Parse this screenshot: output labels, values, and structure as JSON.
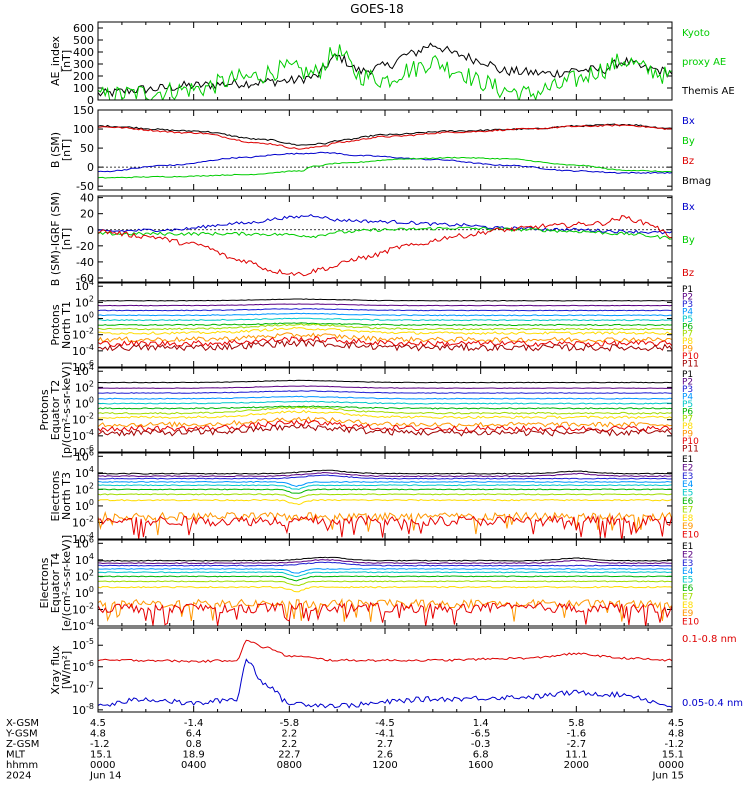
{
  "title": "GOES-18",
  "colors": {
    "black": "#000000",
    "green": "#00cc00",
    "blue": "#0000cc",
    "red": "#dd0000",
    "rainbow": [
      "#000000",
      "#5a0082",
      "#1e1ed2",
      "#0096ff",
      "#00c8c8",
      "#00b400",
      "#a0dc00",
      "#ffdc00",
      "#ff9600",
      "#e60000",
      "#a00000"
    ]
  },
  "panels": [
    {
      "id": "ae",
      "ylabel": [
        "AE_index",
        "[nT]"
      ],
      "yscale": "linear",
      "ylim": [
        0,
        650
      ],
      "ticks": [
        "0",
        "100",
        "200",
        "300",
        "400",
        "500",
        "600"
      ],
      "legend": [
        {
          "text": "Kyoto",
          "color": "#00cc00"
        },
        {
          "text": "proxy AE",
          "color": "#00cc00"
        },
        {
          "text": "Themis AE",
          "color": "#000000"
        }
      ],
      "series": [
        {
          "name": "Themis AE",
          "color": "#000000",
          "kind": "smooth",
          "knots": [
            [
              0,
              50
            ],
            [
              2,
              90
            ],
            [
              4,
              120
            ],
            [
              6,
              140
            ],
            [
              8,
              160
            ],
            [
              9,
              190
            ],
            [
              10,
              360
            ],
            [
              11,
              240
            ],
            [
              12,
              280
            ],
            [
              13,
              380
            ],
            [
              14,
              460
            ],
            [
              15,
              380
            ],
            [
              16,
              330
            ],
            [
              17,
              240
            ],
            [
              19,
              220
            ],
            [
              20,
              250
            ],
            [
              21,
              250
            ],
            [
              22,
              320
            ],
            [
              23,
              260
            ],
            [
              24,
              230
            ]
          ],
          "noise": 40
        },
        {
          "name": "Kyoto proxy AE",
          "color": "#00cc00",
          "kind": "smooth",
          "knots": [
            [
              0,
              30
            ],
            [
              2,
              60
            ],
            [
              4,
              90
            ],
            [
              6,
              180
            ],
            [
              8,
              260
            ],
            [
              9,
              220
            ],
            [
              10,
              400
            ],
            [
              11,
              200
            ],
            [
              12,
              170
            ],
            [
              13,
              250
            ],
            [
              14,
              320
            ],
            [
              15,
              250
            ],
            [
              16,
              150
            ],
            [
              17,
              80
            ],
            [
              18,
              50
            ],
            [
              19,
              100
            ],
            [
              20,
              170
            ],
            [
              21,
              250
            ],
            [
              22,
              330
            ],
            [
              23,
              250
            ],
            [
              24,
              190
            ]
          ],
          "noise": 80
        }
      ]
    },
    {
      "id": "bsm",
      "ylabel": [
        "B (SM)",
        "[nT]"
      ],
      "yscale": "linear",
      "ylim": [
        -60,
        150
      ],
      "ticks": [
        "-50",
        "0",
        "50",
        "100",
        "150"
      ],
      "legend": [
        {
          "text": "Bx",
          "color": "#0000cc"
        },
        {
          "text": "By",
          "color": "#00cc00"
        },
        {
          "text": "Bz",
          "color": "#dd0000"
        },
        {
          "text": "Bmag",
          "color": "#000000"
        }
      ],
      "series": [
        {
          "name": "Bmag",
          "color": "#000000",
          "kind": "smooth",
          "knots": [
            [
              0,
              108
            ],
            [
              4,
              95
            ],
            [
              7,
              72
            ],
            [
              8.5,
              58
            ],
            [
              9.5,
              62
            ],
            [
              10,
              70
            ],
            [
              12,
              85
            ],
            [
              15,
              95
            ],
            [
              18,
              100
            ],
            [
              20,
              108
            ],
            [
              22,
              112
            ],
            [
              24,
              102
            ]
          ],
          "noise": 2
        },
        {
          "name": "Bz",
          "color": "#dd0000",
          "kind": "smooth",
          "knots": [
            [
              0,
              106
            ],
            [
              4,
              90
            ],
            [
              7,
              62
            ],
            [
              8.5,
              48
            ],
            [
              9.5,
              56
            ],
            [
              10,
              65
            ],
            [
              12,
              80
            ],
            [
              15,
              92
            ],
            [
              18,
              100
            ],
            [
              20,
              107
            ],
            [
              22,
              110
            ],
            [
              24,
              100
            ]
          ],
          "noise": 2
        },
        {
          "name": "Bx",
          "color": "#0000cc",
          "kind": "smooth",
          "knots": [
            [
              0,
              -12
            ],
            [
              3,
              5
            ],
            [
              6,
              25
            ],
            [
              8,
              35
            ],
            [
              9.5,
              38
            ],
            [
              11,
              30
            ],
            [
              14,
              20
            ],
            [
              17,
              5
            ],
            [
              20,
              -10
            ],
            [
              22,
              -15
            ],
            [
              24,
              -15
            ]
          ],
          "noise": 1.5
        },
        {
          "name": "By",
          "color": "#00cc00",
          "kind": "smooth",
          "knots": [
            [
              0,
              -28
            ],
            [
              3,
              -25
            ],
            [
              6,
              -20
            ],
            [
              8.5,
              -10
            ],
            [
              9,
              2
            ],
            [
              10,
              10
            ],
            [
              13,
              22
            ],
            [
              15,
              25
            ],
            [
              17,
              22
            ],
            [
              20,
              5
            ],
            [
              22,
              -8
            ],
            [
              24,
              -12
            ]
          ],
          "noise": 1.2
        }
      ]
    },
    {
      "id": "bigrf",
      "ylabel": [
        "B (SM)-IGRF (SM)",
        "[nT]"
      ],
      "yscale": "linear",
      "ylim": [
        -65,
        42
      ],
      "ticks": [
        "-60",
        "-40",
        "-20",
        "0",
        "20",
        "40"
      ],
      "legend": [
        {
          "text": "Bx",
          "color": "#0000cc"
        },
        {
          "text": "By",
          "color": "#00cc00"
        },
        {
          "text": "Bz",
          "color": "#dd0000"
        }
      ],
      "series": [
        {
          "name": "Bx",
          "color": "#0000cc",
          "kind": "smooth",
          "knots": [
            [
              0,
              -2
            ],
            [
              3,
              0
            ],
            [
              6,
              8
            ],
            [
              8,
              15
            ],
            [
              9,
              18
            ],
            [
              10,
              12
            ],
            [
              12,
              10
            ],
            [
              15,
              6
            ],
            [
              17,
              2
            ],
            [
              20,
              0
            ],
            [
              22,
              -2
            ],
            [
              24,
              -4
            ]
          ],
          "noise": 2
        },
        {
          "name": "By",
          "color": "#00cc00",
          "kind": "smooth",
          "knots": [
            [
              0,
              -5
            ],
            [
              3,
              -5
            ],
            [
              6,
              -5
            ],
            [
              8,
              -6
            ],
            [
              9,
              -8
            ],
            [
              10,
              -3
            ],
            [
              12,
              0
            ],
            [
              15,
              2
            ],
            [
              18,
              0
            ],
            [
              20,
              -2
            ],
            [
              22,
              -5
            ],
            [
              24,
              -10
            ]
          ],
          "noise": 2
        },
        {
          "name": "Bz",
          "color": "#dd0000",
          "kind": "smooth",
          "knots": [
            [
              0,
              -2
            ],
            [
              2,
              -8
            ],
            [
              4,
              -18
            ],
            [
              6,
              -38
            ],
            [
              7.5,
              -52
            ],
            [
              8.5,
              -55
            ],
            [
              9.5,
              -48
            ],
            [
              11,
              -35
            ],
            [
              13,
              -20
            ],
            [
              15,
              -8
            ],
            [
              17,
              0
            ],
            [
              19,
              5
            ],
            [
              21,
              8
            ],
            [
              22,
              15
            ],
            [
              23,
              8
            ],
            [
              24,
              -8
            ]
          ],
          "noise": 3
        }
      ]
    },
    {
      "id": "pn",
      "ylabel": [
        "Protons",
        "North T1"
      ],
      "yscale": "log",
      "ylim": [
        -6,
        4.4
      ],
      "ticks": [
        "10^-6",
        "10^-4",
        "10^-2",
        "10^0",
        "10^2",
        "10^4"
      ],
      "legend": [
        "P1",
        "P2",
        "P3",
        "P4",
        "P5",
        "P6",
        "P7",
        "P8",
        "P9",
        "P10",
        "P11"
      ],
      "channels": {
        "base": [
          2.2,
          1.6,
          1.0,
          0.4,
          -0.2,
          -0.8,
          -1.3,
          -1.8,
          -2.6,
          -3.1,
          -3.6
        ],
        "bump": 0.4,
        "noise": [
          0.03,
          0.03,
          0.04,
          0.05,
          0.06,
          0.07,
          0.1,
          0.15,
          0.3,
          0.35,
          0.4
        ]
      }
    },
    {
      "id": "pe",
      "ylabel": [
        "Protons",
        "Equator T2",
        "[p/(cm²-s-sr-keV)]"
      ],
      "yscale": "log",
      "ylim": [
        -6,
        4.4
      ],
      "ticks": [
        "10^-6",
        "10^-4",
        "10^-2",
        "10^0",
        "10^2",
        "10^4"
      ],
      "legend": [
        "P1",
        "P2",
        "P3",
        "P4",
        "P5",
        "P6",
        "P7",
        "P8",
        "P9",
        "P10",
        "P11"
      ],
      "channels": {
        "base": [
          2.6,
          1.9,
          1.3,
          0.6,
          0.0,
          -0.6,
          -1.2,
          -1.7,
          -2.6,
          -3.1,
          -3.6
        ],
        "bump": 0.5,
        "noise": [
          0.03,
          0.03,
          0.04,
          0.05,
          0.06,
          0.07,
          0.1,
          0.15,
          0.3,
          0.35,
          0.4
        ]
      }
    },
    {
      "id": "en",
      "ylabel": [
        "Electrons",
        "North T3"
      ],
      "yscale": "log",
      "ylim": [
        -4,
        6.4
      ],
      "ticks": [
        "10^-4",
        "10^-2",
        "10^0",
        "10^2",
        "10^4",
        "10^6"
      ],
      "legend": [
        "E1",
        "E2",
        "E3",
        "E4",
        "E5",
        "E6",
        "E7",
        "E8",
        "E9",
        "E10"
      ],
      "channels": {
        "base": [
          3.9,
          3.6,
          3.3,
          2.9,
          2.5,
          2.0,
          1.4,
          0.7,
          -1.3,
          -1.8
        ],
        "bump": 0,
        "noise": [
          0.05,
          0.05,
          0.05,
          0.05,
          0.05,
          0.05,
          0.06,
          0.08,
          0.5,
          0.6
        ]
      }
    },
    {
      "id": "ee",
      "ylabel": [
        "Electrons",
        "Equator T4",
        "[e/(cm²-s-sr-keV)]"
      ],
      "yscale": "log",
      "ylim": [
        -4,
        6.4
      ],
      "ticks": [
        "10^-4",
        "10^-2",
        "10^0",
        "10^2",
        "10^4",
        "10^6"
      ],
      "legend": [
        "E1",
        "E2",
        "E3",
        "E4",
        "E5",
        "E6",
        "E7",
        "E8",
        "E9",
        "E10"
      ],
      "channels": {
        "base": [
          3.9,
          3.6,
          3.3,
          2.9,
          2.5,
          2.0,
          1.4,
          0.7,
          -1.3,
          -1.8
        ],
        "bump": 0,
        "noise": [
          0.05,
          0.05,
          0.05,
          0.05,
          0.05,
          0.05,
          0.06,
          0.08,
          0.5,
          0.6
        ]
      }
    },
    {
      "id": "xray",
      "ylabel": [
        "Xray flux",
        "[W/m²]"
      ],
      "yscale": "log",
      "ylim": [
        -8.1,
        -4.2
      ],
      "ticks": [
        "10^-8",
        "10^-7",
        "10^-6",
        "10^-5"
      ],
      "legend": [
        {
          "text": "0.1-0.8 nm",
          "color": "#dd0000"
        },
        {
          "text": "0.05-0.4 nm",
          "color": "#0000cc"
        }
      ],
      "series": [
        {
          "name": "0.1-0.8 nm",
          "color": "#dd0000",
          "kind": "smooth",
          "knots": [
            [
              0,
              -5.7
            ],
            [
              2,
              -5.7
            ],
            [
              4,
              -5.75
            ],
            [
              5.8,
              -5.7
            ],
            [
              6.2,
              -4.8
            ],
            [
              7,
              -5.1
            ],
            [
              8,
              -5.5
            ],
            [
              10,
              -5.7
            ],
            [
              14,
              -5.7
            ],
            [
              18,
              -5.6
            ],
            [
              20,
              -5.4
            ],
            [
              22,
              -5.6
            ],
            [
              24,
              -5.7
            ]
          ],
          "noise": 0.05
        },
        {
          "name": "0.05-0.4 nm",
          "color": "#0000cc",
          "kind": "smooth",
          "knots": [
            [
              0,
              -7.8
            ],
            [
              2,
              -7.5
            ],
            [
              4,
              -7.7
            ],
            [
              5.8,
              -7.5
            ],
            [
              6.2,
              -5.7
            ],
            [
              7,
              -6.8
            ],
            [
              8,
              -7.7
            ],
            [
              10,
              -7.8
            ],
            [
              14,
              -7.5
            ],
            [
              18,
              -7.4
            ],
            [
              20,
              -7.2
            ],
            [
              22,
              -7.3
            ],
            [
              24,
              -7.8
            ]
          ],
          "noise": 0.12
        }
      ]
    }
  ],
  "xaxis": {
    "ticks_hours": [
      0,
      4,
      8,
      12,
      16,
      20,
      24
    ],
    "row_labels": [
      "X-GSM",
      "Y-GSM",
      "Z-GSM",
      "MLT",
      "hhmm",
      "2024"
    ],
    "rows": [
      [
        "4.5",
        "-1.4",
        "-5.8",
        "-4.5",
        "1.4",
        "5.8",
        "4.5"
      ],
      [
        "4.8",
        "6.4",
        "2.2",
        "-4.1",
        "-6.5",
        "-1.6",
        "4.8"
      ],
      [
        "-1.2",
        "0.8",
        "2.2",
        "2.7",
        "-0.3",
        "-2.7",
        "-1.2"
      ],
      [
        "15.1",
        "18.9",
        "22.7",
        "2.6",
        "6.8",
        "11.1",
        "15.1"
      ],
      [
        "0000",
        "0400",
        "0800",
        "1200",
        "1600",
        "2000",
        "0000"
      ],
      [
        "Jun 14",
        "",
        "",
        "",
        "",
        "",
        "Jun 15"
      ]
    ]
  }
}
